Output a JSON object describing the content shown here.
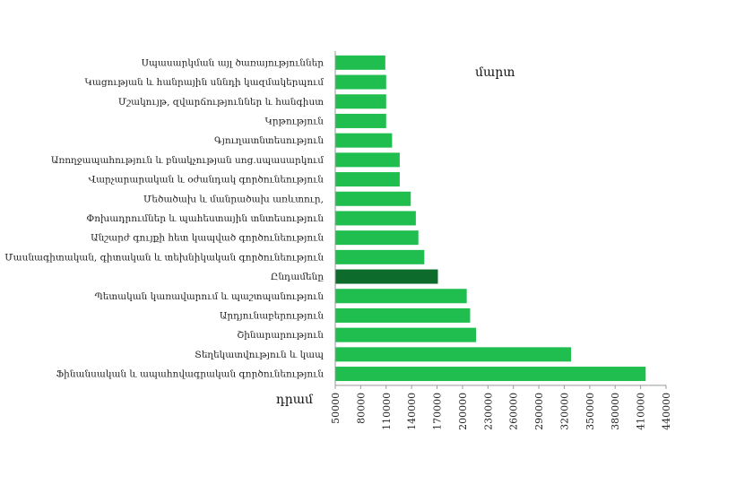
{
  "chart_data": {
    "type": "bar",
    "orientation": "horizontal",
    "annotation": "մարտ",
    "xlabel": "դրամ",
    "xlim": [
      50000,
      440000
    ],
    "xticks": [
      50000,
      80000,
      110000,
      140000,
      170000,
      200000,
      230000,
      260000,
      290000,
      320000,
      350000,
      380000,
      410000,
      440000
    ],
    "grid": false,
    "categories": [
      "Սպասարկման այլ ծառայություններ",
      "Կացության և հանրային սննդի կազմակերպում",
      "Մշակույթ, զվարճություններ և հանգիստ",
      "Կրթություն",
      "Գյուղատնտեսություն",
      "Առողջապահություն և բնակչության սոց.սպասարկում",
      "Վարչարարական և օժանդակ գործունեություն",
      "Մեծածախ և մանրածախ առևտուր,",
      "Փոխադրումներ և պահեստային տնտեսություն",
      "Անշարժ գույքի հետ կապված գործունեություն",
      "Մասնագիտական, գիտական և տեխնիկական գործունեություն",
      "Ընդամենը",
      "Պետական կառավարում և պաշտպանություն",
      "Արդյունաբերություն",
      "Շինարարություն",
      "Տեղեկատվություն և կապ",
      "Ֆինանսական և ապահովագրական գործունեություն"
    ],
    "values": [
      109000,
      110000,
      110000,
      110000,
      117000,
      126000,
      126000,
      139000,
      145000,
      148000,
      155000,
      171000,
      205000,
      209000,
      216000,
      328000,
      416000
    ],
    "highlight_category": "Ընդամենը",
    "colors": {
      "bar": "#1fbe4f",
      "highlight": "#0d6b2c",
      "axis": "#999999"
    }
  }
}
